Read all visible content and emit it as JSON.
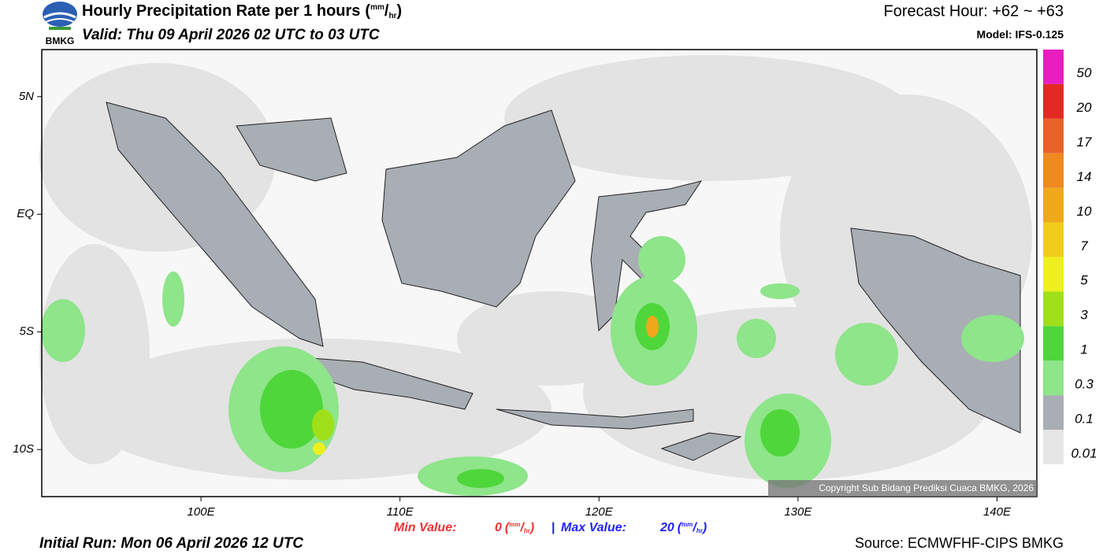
{
  "header": {
    "logo_text": "BMKG",
    "title": "Hourly Precipitation Rate per 1 hours",
    "unit": [
      "(",
      "mm",
      "/",
      "hr",
      ")"
    ],
    "valid": "Valid: Thu 09 April 2026 02 UTC to 03 UTC",
    "forecast_hour": "Forecast Hour: +62 ~ +63",
    "model": "Model: IFS-0.125"
  },
  "map": {
    "xlim": [
      92,
      142
    ],
    "ylim": [
      -12,
      7
    ],
    "xticks": [
      {
        "value": 100,
        "label": "100E"
      },
      {
        "value": 110,
        "label": "110E"
      },
      {
        "value": 120,
        "label": "120E"
      },
      {
        "value": 130,
        "label": "130E"
      },
      {
        "value": 140,
        "label": "140E"
      }
    ],
    "yticks": [
      {
        "value": 5,
        "label": "5N"
      },
      {
        "value": 0,
        "label": "EQ"
      },
      {
        "value": -5,
        "label": "5S"
      },
      {
        "value": -10,
        "label": "10S"
      }
    ],
    "copyright": "Copyright Sub Bidang Prediksi Cuaca BMKG, 2026"
  },
  "colorbar": {
    "levels": [
      0.01,
      0.1,
      0.3,
      1,
      3,
      5,
      7,
      10,
      14,
      17,
      20,
      50
    ],
    "colors": [
      "#e6e6e6",
      "#a9adb4",
      "#8ee58a",
      "#4fd63b",
      "#9fe01a",
      "#eef01e",
      "#f2cc1a",
      "#f0a81c",
      "#ee8a1e",
      "#e8622a",
      "#e22a22",
      "#e81ec0"
    ]
  },
  "footer": {
    "min_label": "Min Value:",
    "min_value": 0,
    "separator": "|",
    "max_label": "Max Value:",
    "max_value": 20,
    "initial_run": "Initial Run: Mon 06 April 2026 12 UTC",
    "source": "Source: ECMWFHF-CIPS BMKG"
  }
}
